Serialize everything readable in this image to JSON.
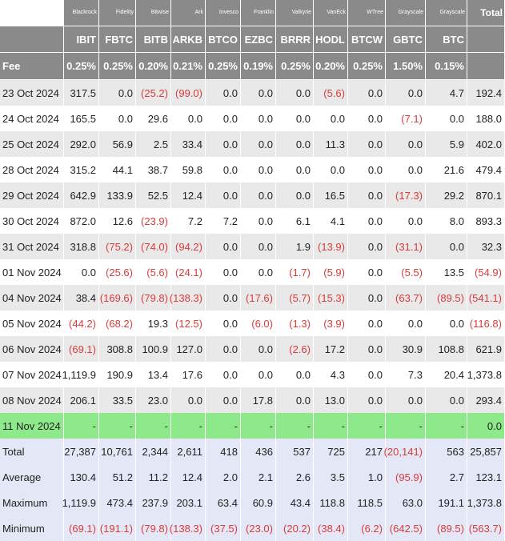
{
  "table": {
    "issuers": [
      "",
      "Blackrock",
      "Fidelity",
      "Bitwise",
      "Ark",
      "Invesco",
      "Franklin",
      "Valkyrie",
      "VanEck",
      "WTree",
      "Grayscale",
      "Grayscale",
      "Total"
    ],
    "tickers": [
      "",
      "IBIT",
      "FBTC",
      "BITB",
      "ARKB",
      "BTCO",
      "EZBC",
      "BRRR",
      "HODL",
      "BTCW",
      "GBTC",
      "BTC",
      ""
    ],
    "fees": [
      "Fee",
      "0.25%",
      "0.25%",
      "0.20%",
      "0.21%",
      "0.25%",
      "0.19%",
      "0.25%",
      "0.20%",
      "0.25%",
      "1.50%",
      "0.15%",
      ""
    ],
    "rows": [
      {
        "cells": [
          "23 Oct 2024",
          "317.5",
          "0.0",
          "(25.2)",
          "(99.0)",
          "0.0",
          "0.0",
          "0.0",
          "(5.6)",
          "0.0",
          "0.0",
          "4.7",
          "192.4"
        ]
      },
      {
        "cells": [
          "24 Oct 2024",
          "165.5",
          "0.0",
          "29.6",
          "0.0",
          "0.0",
          "0.0",
          "0.0",
          "0.0",
          "0.0",
          "(7.1)",
          "0.0",
          "188.0"
        ]
      },
      {
        "cells": [
          "25 Oct 2024",
          "292.0",
          "56.9",
          "2.5",
          "33.4",
          "0.0",
          "0.0",
          "0.0",
          "11.3",
          "0.0",
          "0.0",
          "5.9",
          "402.0"
        ]
      },
      {
        "cells": [
          "28 Oct 2024",
          "315.2",
          "44.1",
          "38.7",
          "59.8",
          "0.0",
          "0.0",
          "0.0",
          "0.0",
          "0.0",
          "0.0",
          "21.6",
          "479.4"
        ]
      },
      {
        "cells": [
          "29 Oct 2024",
          "642.9",
          "133.9",
          "52.5",
          "12.4",
          "0.0",
          "0.0",
          "0.0",
          "16.5",
          "0.0",
          "(17.3)",
          "29.2",
          "870.1"
        ]
      },
      {
        "cells": [
          "30 Oct 2024",
          "872.0",
          "12.6",
          "(23.9)",
          "7.2",
          "7.2",
          "0.0",
          "6.1",
          "4.1",
          "0.0",
          "0.0",
          "8.0",
          "893.3"
        ]
      },
      {
        "cells": [
          "31 Oct 2024",
          "318.8",
          "(75.2)",
          "(74.0)",
          "(94.2)",
          "0.0",
          "0.0",
          "1.9",
          "(13.9)",
          "0.0",
          "(31.1)",
          "0.0",
          "32.3"
        ]
      },
      {
        "cells": [
          "01 Nov 2024",
          "0.0",
          "(25.6)",
          "(5.6)",
          "(24.1)",
          "0.0",
          "0.0",
          "(1.7)",
          "(5.9)",
          "0.0",
          "(5.5)",
          "13.5",
          "(54.9)"
        ]
      },
      {
        "cells": [
          "04 Nov 2024",
          "38.4",
          "(169.6)",
          "(79.8)",
          "(138.3)",
          "0.0",
          "(17.6)",
          "(5.7)",
          "(15.3)",
          "0.0",
          "(63.7)",
          "(89.5)",
          "(541.1)"
        ]
      },
      {
        "cells": [
          "05 Nov 2024",
          "(44.2)",
          "(68.2)",
          "19.3",
          "(12.5)",
          "0.0",
          "(6.0)",
          "(1.3)",
          "(3.9)",
          "0.0",
          "0.0",
          "0.0",
          "(116.8)"
        ]
      },
      {
        "cells": [
          "06 Nov 2024",
          "(69.1)",
          "308.8",
          "100.9",
          "127.0",
          "0.0",
          "0.0",
          "(2.6)",
          "17.2",
          "0.0",
          "30.9",
          "108.8",
          "621.9"
        ]
      },
      {
        "cells": [
          "07 Nov 2024",
          "1,119.9",
          "190.9",
          "13.4",
          "17.6",
          "0.0",
          "0.0",
          "0.0",
          "4.3",
          "0.0",
          "7.3",
          "20.4",
          "1,373.8"
        ]
      },
      {
        "cells": [
          "08 Nov 2024",
          "206.1",
          "33.5",
          "23.0",
          "0.0",
          "0.0",
          "17.8",
          "0.0",
          "13.0",
          "0.0",
          "0.0",
          "0.0",
          "293.4"
        ]
      },
      {
        "cells": [
          "11 Nov 2024",
          "-",
          "-",
          "-",
          "-",
          "-",
          "-",
          "-",
          "-",
          "-",
          "-",
          "-",
          "0.0"
        ]
      }
    ],
    "stats": [
      {
        "cells": [
          "Total",
          "27,387",
          "10,761",
          "2,344",
          "2,611",
          "418",
          "436",
          "537",
          "725",
          "217",
          "(20,141)",
          "563",
          "25,857"
        ]
      },
      {
        "cells": [
          "Average",
          "130.4",
          "51.2",
          "11.2",
          "12.4",
          "2.0",
          "2.1",
          "2.6",
          "3.5",
          "1.0",
          "(95.9)",
          "2.7",
          "123.1"
        ]
      },
      {
        "cells": [
          "Maximum",
          "1,119.9",
          "473.4",
          "237.9",
          "203.1",
          "63.4",
          "60.9",
          "43.4",
          "118.8",
          "118.5",
          "63.0",
          "191.1",
          "1,373.8"
        ]
      },
      {
        "cells": [
          "Minimum",
          "(69.1)",
          "(191.1)",
          "(79.8)",
          "(138.3)",
          "(37.5)",
          "(23.0)",
          "(20.2)",
          "(38.4)",
          "(6.2)",
          "(642.5)",
          "(89.5)",
          "(563.7)"
        ]
      }
    ]
  },
  "colors": {
    "header_bg": "#8a8a8a",
    "stripe_bg": "#e9e9e9",
    "highlight_row_bg": "#8ee98b",
    "stats_bg": "#e4e8f6",
    "negative_text": "#d93a3a"
  }
}
